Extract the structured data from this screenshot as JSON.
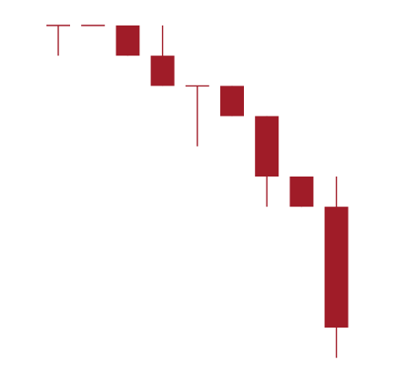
{
  "chart_data": {
    "type": "candlestick",
    "title": "",
    "xlabel": "",
    "ylabel": "",
    "ylim": [
      0,
      12
    ],
    "grid": false,
    "legend": "none",
    "colors": {
      "down": "#A01C28",
      "up": "#A01C28"
    },
    "candles": [
      {
        "open": 11.0,
        "high": 11.0,
        "low": 10.0,
        "close": 11.0
      },
      {
        "open": 11.0,
        "high": 11.0,
        "low": 11.0,
        "close": 11.0
      },
      {
        "open": 11.0,
        "high": 11.0,
        "low": 10.0,
        "close": 10.0
      },
      {
        "open": 10.0,
        "high": 11.0,
        "low": 9.0,
        "close": 9.0
      },
      {
        "open": 9.0,
        "high": 9.0,
        "low": 7.0,
        "close": 9.0
      },
      {
        "open": 9.0,
        "high": 9.0,
        "low": 8.0,
        "close": 8.0
      },
      {
        "open": 8.0,
        "high": 8.0,
        "low": 5.0,
        "close": 6.0
      },
      {
        "open": 6.0,
        "high": 6.0,
        "low": 5.0,
        "close": 5.0
      },
      {
        "open": 5.0,
        "high": 6.0,
        "low": 0.0,
        "close": 1.0
      }
    ]
  }
}
